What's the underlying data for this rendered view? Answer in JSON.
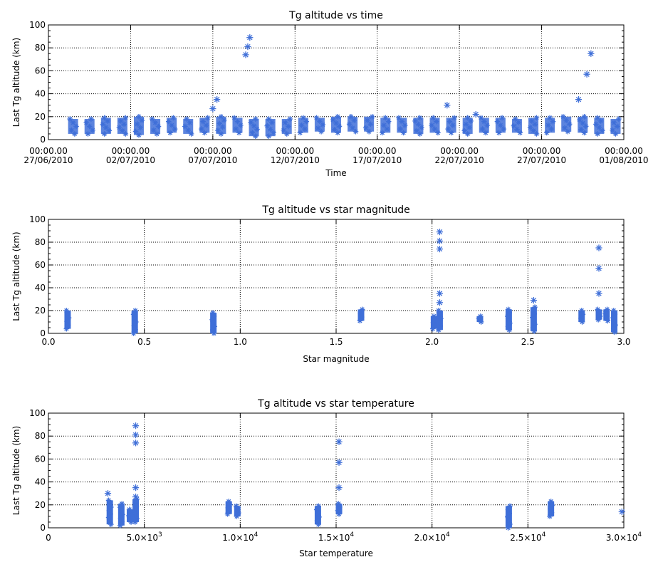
{
  "chart_data": [
    {
      "type": "scatter",
      "title": "Tg altitude vs time",
      "xlabel": "Time",
      "ylabel": "Last Tg altitude (km)",
      "marker": "asterisk",
      "color": "#3f6fd8",
      "grid": true,
      "xlim": [
        "2010-06-27T00:00",
        "2010-08-01T00:00"
      ],
      "ylim": [
        0,
        100
      ],
      "xticks": [
        "2010-06-27",
        "2010-07-02",
        "2010-07-07",
        "2010-07-12",
        "2010-07-17",
        "2010-07-22",
        "2010-07-27",
        "2010-08-01"
      ],
      "xtick_labels": [
        {
          "time": "00:00.00",
          "date": "27/06/2010"
        },
        {
          "time": "00:00.00",
          "date": "02/07/2010"
        },
        {
          "time": "00:00.00",
          "date": "07/07/2010"
        },
        {
          "time": "00:00.00",
          "date": "12/07/2010"
        },
        {
          "time": "00:00.00",
          "date": "17/07/2010"
        },
        {
          "time": "00:00.00",
          "date": "22/07/2010"
        },
        {
          "time": "00:00.00",
          "date": "27/07/2010"
        },
        {
          "time": "00:00.00",
          "date": "01/08/2010"
        }
      ],
      "yticks": [
        0,
        20,
        40,
        60,
        80,
        100
      ],
      "clusters": [
        {
          "x": "2010-06-28T12:00",
          "ylow": 5,
          "yhigh": 18
        },
        {
          "x": "2010-06-29T12:00",
          "ylow": 5,
          "yhigh": 18
        },
        {
          "x": "2010-06-30T12:00",
          "ylow": 5,
          "yhigh": 19
        },
        {
          "x": "2010-07-01T12:00",
          "ylow": 5,
          "yhigh": 19
        },
        {
          "x": "2010-07-02T12:00",
          "ylow": 4,
          "yhigh": 20
        },
        {
          "x": "2010-07-03T12:00",
          "ylow": 5,
          "yhigh": 18
        },
        {
          "x": "2010-07-04T12:00",
          "ylow": 6,
          "yhigh": 19
        },
        {
          "x": "2010-07-05T12:00",
          "ylow": 5,
          "yhigh": 18
        },
        {
          "x": "2010-07-06T12:00",
          "ylow": 6,
          "yhigh": 19
        },
        {
          "x": "2010-07-07T12:00",
          "ylow": 5,
          "yhigh": 20
        },
        {
          "x": "2010-07-08T12:00",
          "ylow": 6,
          "yhigh": 19
        },
        {
          "x": "2010-07-09T12:00",
          "ylow": 3,
          "yhigh": 18
        },
        {
          "x": "2010-07-10T12:00",
          "ylow": 3,
          "yhigh": 18
        },
        {
          "x": "2010-07-11T12:00",
          "ylow": 5,
          "yhigh": 18
        },
        {
          "x": "2010-07-12T12:00",
          "ylow": 6,
          "yhigh": 19
        },
        {
          "x": "2010-07-13T12:00",
          "ylow": 7,
          "yhigh": 19
        },
        {
          "x": "2010-07-14T12:00",
          "ylow": 6,
          "yhigh": 20
        },
        {
          "x": "2010-07-15T12:00",
          "ylow": 7,
          "yhigh": 20
        },
        {
          "x": "2010-07-16T12:00",
          "ylow": 7,
          "yhigh": 20
        },
        {
          "x": "2010-07-17T12:00",
          "ylow": 6,
          "yhigh": 19
        },
        {
          "x": "2010-07-18T12:00",
          "ylow": 6,
          "yhigh": 19
        },
        {
          "x": "2010-07-19T12:00",
          "ylow": 5,
          "yhigh": 19
        },
        {
          "x": "2010-07-20T12:00",
          "ylow": 6,
          "yhigh": 19
        },
        {
          "x": "2010-07-21T12:00",
          "ylow": 6,
          "yhigh": 19
        },
        {
          "x": "2010-07-22T12:00",
          "ylow": 5,
          "yhigh": 19
        },
        {
          "x": "2010-07-23T12:00",
          "ylow": 6,
          "yhigh": 19
        },
        {
          "x": "2010-07-24T12:00",
          "ylow": 6,
          "yhigh": 19
        },
        {
          "x": "2010-07-25T12:00",
          "ylow": 6,
          "yhigh": 18
        },
        {
          "x": "2010-07-26T12:00",
          "ylow": 5,
          "yhigh": 19
        },
        {
          "x": "2010-07-27T12:00",
          "ylow": 6,
          "yhigh": 19
        },
        {
          "x": "2010-07-28T12:00",
          "ylow": 7,
          "yhigh": 20
        },
        {
          "x": "2010-07-29T12:00",
          "ylow": 6,
          "yhigh": 20
        },
        {
          "x": "2010-07-30T12:00",
          "ylow": 5,
          "yhigh": 19
        },
        {
          "x": "2010-07-31T12:00",
          "ylow": 5,
          "yhigh": 18
        }
      ],
      "points": [
        {
          "x": "2010-07-07T00:00",
          "y": 27
        },
        {
          "x": "2010-07-07T06:00",
          "y": 35
        },
        {
          "x": "2010-07-09T00:00",
          "y": 74
        },
        {
          "x": "2010-07-09T03:00",
          "y": 81
        },
        {
          "x": "2010-07-09T06:00",
          "y": 89
        },
        {
          "x": "2010-07-21T06:00",
          "y": 30
        },
        {
          "x": "2010-07-23T00:00",
          "y": 22
        },
        {
          "x": "2010-07-29T06:00",
          "y": 35
        },
        {
          "x": "2010-07-29T18:00",
          "y": 57
        },
        {
          "x": "2010-07-30T00:00",
          "y": 75
        }
      ]
    },
    {
      "type": "scatter",
      "title": "Tg altitude vs star magnitude",
      "xlabel": "Star magnitude",
      "ylabel": "Last Tg altitude (km)",
      "marker": "asterisk",
      "color": "#3f6fd8",
      "grid": true,
      "xlim": [
        0.0,
        3.0
      ],
      "ylim": [
        0,
        100
      ],
      "xticks": [
        0.0,
        0.5,
        1.0,
        1.5,
        2.0,
        2.5,
        3.0
      ],
      "xtick_labels": [
        "0.0",
        "0.5",
        "1.0",
        "1.5",
        "2.0",
        "2.5",
        "3.0"
      ],
      "yticks": [
        0,
        20,
        40,
        60,
        80,
        100
      ],
      "clusters": [
        {
          "x": 0.1,
          "ylow": 4,
          "yhigh": 20
        },
        {
          "x": 0.45,
          "ylow": 0,
          "yhigh": 20
        },
        {
          "x": 0.86,
          "ylow": 0,
          "yhigh": 18
        },
        {
          "x": 1.63,
          "ylow": 11,
          "yhigh": 21
        },
        {
          "x": 2.01,
          "ylow": 4,
          "yhigh": 15
        },
        {
          "x": 2.04,
          "ylow": 3,
          "yhigh": 20
        },
        {
          "x": 2.25,
          "ylow": 10,
          "yhigh": 15
        },
        {
          "x": 2.4,
          "ylow": 3,
          "yhigh": 21
        },
        {
          "x": 2.53,
          "ylow": 2,
          "yhigh": 23
        },
        {
          "x": 2.78,
          "ylow": 10,
          "yhigh": 20
        },
        {
          "x": 2.87,
          "ylow": 12,
          "yhigh": 21
        },
        {
          "x": 2.91,
          "ylow": 11,
          "yhigh": 21
        },
        {
          "x": 2.95,
          "ylow": 1,
          "yhigh": 20
        }
      ],
      "points": [
        {
          "x": 2.04,
          "y": 27
        },
        {
          "x": 2.04,
          "y": 35
        },
        {
          "x": 2.04,
          "y": 74
        },
        {
          "x": 2.04,
          "y": 81
        },
        {
          "x": 2.04,
          "y": 89
        },
        {
          "x": 2.53,
          "y": 29
        },
        {
          "x": 2.87,
          "y": 35
        },
        {
          "x": 2.87,
          "y": 57
        },
        {
          "x": 2.87,
          "y": 75
        }
      ]
    },
    {
      "type": "scatter",
      "title": "Tg altitude vs star temperature",
      "xlabel": "Star temperature",
      "ylabel": "Last Tg altitude (km)",
      "marker": "asterisk",
      "color": "#3f6fd8",
      "grid": true,
      "xlim": [
        0,
        30000
      ],
      "ylim": [
        0,
        100
      ],
      "xticks": [
        0,
        5000,
        10000,
        15000,
        20000,
        25000,
        30000
      ],
      "xtick_labels": [
        {
          "base": "0",
          "exp": ""
        },
        {
          "base": "5.0×10",
          "exp": "3"
        },
        {
          "base": "1.0×10",
          "exp": "4"
        },
        {
          "base": "1.5×10",
          "exp": "4"
        },
        {
          "base": "2.0×10",
          "exp": "4"
        },
        {
          "base": "2.5×10",
          "exp": "4"
        },
        {
          "base": "3.0×10",
          "exp": "4"
        }
      ],
      "yticks": [
        0,
        20,
        40,
        60,
        80,
        100
      ],
      "clusters": [
        {
          "x": 3200,
          "ylow": 3,
          "yhigh": 24
        },
        {
          "x": 3800,
          "ylow": 2,
          "yhigh": 21
        },
        {
          "x": 4250,
          "ylow": 5,
          "yhigh": 16
        },
        {
          "x": 4550,
          "ylow": 5,
          "yhigh": 25
        },
        {
          "x": 9400,
          "ylow": 12,
          "yhigh": 23
        },
        {
          "x": 9850,
          "ylow": 10,
          "yhigh": 19
        },
        {
          "x": 14050,
          "ylow": 3,
          "yhigh": 19
        },
        {
          "x": 15150,
          "ylow": 12,
          "yhigh": 21
        },
        {
          "x": 24000,
          "ylow": 0,
          "yhigh": 19
        },
        {
          "x": 26200,
          "ylow": 10,
          "yhigh": 23
        }
      ],
      "points": [
        {
          "x": 3100,
          "y": 30
        },
        {
          "x": 4550,
          "y": 27
        },
        {
          "x": 4550,
          "y": 35
        },
        {
          "x": 4550,
          "y": 74
        },
        {
          "x": 4550,
          "y": 81
        },
        {
          "x": 4550,
          "y": 89
        },
        {
          "x": 15150,
          "y": 35
        },
        {
          "x": 15150,
          "y": 57
        },
        {
          "x": 15150,
          "y": 75
        },
        {
          "x": 29900,
          "y": 14
        }
      ]
    }
  ]
}
